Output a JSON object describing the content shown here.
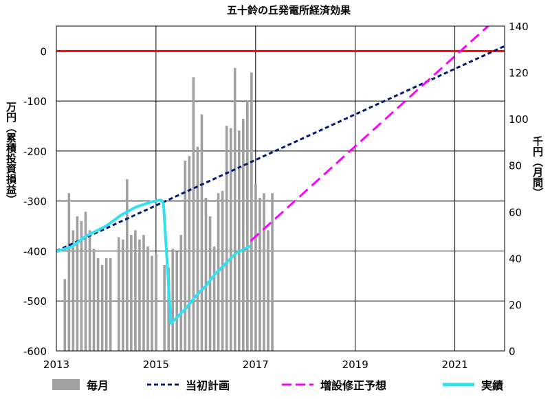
{
  "chart_data": {
    "type": "bar+line",
    "title": "五十鈴の丘発電所経済効果",
    "ylabel_left": "万円（累積投資損益）",
    "ylabel_right": "千円（月間）",
    "x_ticks": [
      "2013",
      "2015",
      "2017",
      "2019",
      "2021"
    ],
    "xlim": [
      2013,
      2022
    ],
    "y_left_ticks": [
      "0",
      "-100",
      "-200",
      "-300",
      "-400",
      "-500",
      "-600"
    ],
    "ylim_left": [
      -600,
      50
    ],
    "y_right_ticks": [
      "0",
      "20",
      "40",
      "60",
      "80",
      "100",
      "120",
      "140"
    ],
    "ylim_right": [
      0,
      140
    ],
    "grid": "vertical every 2 years, horizontal every 100",
    "legend_position": "bottom",
    "zero_line": {
      "value": 0,
      "color": "#ff0000"
    },
    "series": [
      {
        "name": "毎月",
        "kind": "bar",
        "axis": "right",
        "color": "#a0a0a0",
        "x_start": 2013.17,
        "step": 0.0833,
        "values": [
          31,
          68,
          52,
          58,
          56,
          60,
          52,
          44,
          40,
          37,
          40,
          40,
          0,
          49,
          48,
          74,
          50,
          52,
          48,
          50,
          45,
          41,
          42,
          0,
          37,
          36,
          44,
          43,
          50,
          82,
          84,
          118,
          88,
          102,
          66,
          58,
          45,
          68,
          69,
          97,
          96,
          122,
          95,
          100,
          108,
          120,
          72,
          66,
          68,
          52,
          68
        ]
      },
      {
        "name": "当初計画",
        "kind": "line",
        "axis": "left",
        "color": "#001a70",
        "dash": "short",
        "points": [
          [
            2013,
            -400
          ],
          [
            2022,
            10
          ]
        ]
      },
      {
        "name": "増設修正予想",
        "kind": "line",
        "axis": "left",
        "color": "#ff00ff",
        "dash": "long",
        "points": [
          [
            2016.9,
            -380
          ],
          [
            2022,
            80
          ]
        ]
      },
      {
        "name": "実績",
        "kind": "line",
        "axis": "left",
        "color": "#33e0f0",
        "points": [
          [
            2013,
            -401
          ],
          [
            2013.3,
            -392
          ],
          [
            2013.6,
            -370
          ],
          [
            2014,
            -350
          ],
          [
            2014.3,
            -328
          ],
          [
            2014.6,
            -312
          ],
          [
            2014.9,
            -302
          ],
          [
            2015.1,
            -298
          ],
          [
            2015.15,
            -305
          ],
          [
            2015.3,
            -545
          ],
          [
            2015.4,
            -535
          ],
          [
            2015.6,
            -515
          ],
          [
            2015.8,
            -490
          ],
          [
            2016.0,
            -470
          ],
          [
            2016.2,
            -445
          ],
          [
            2016.4,
            -425
          ],
          [
            2016.6,
            -405
          ],
          [
            2016.9,
            -390
          ]
        ]
      }
    ]
  }
}
